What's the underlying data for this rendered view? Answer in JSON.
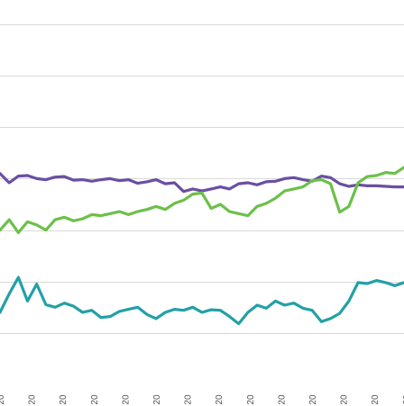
{
  "chart_data": {
    "type": "line",
    "grid": true,
    "legend": "none",
    "xlabel": "",
    "ylabel": "",
    "ylim": [
      0,
      7
    ],
    "gridlines": [
      1,
      2,
      3,
      4,
      5,
      6,
      7
    ],
    "x_tick_labels": [
      "20",
      "20",
      "20",
      "20",
      "20",
      "20",
      "20",
      "20",
      "20",
      "20",
      "20",
      "20",
      "20",
      "20"
    ],
    "series": [
      {
        "color": "#6a4fa3",
        "values": [
          4.1,
          3.92,
          4.05,
          4.06,
          4.0,
          3.98,
          4.03,
          4.04,
          3.97,
          3.98,
          3.95,
          3.98,
          4.0,
          3.96,
          3.98,
          3.91,
          3.94,
          3.98,
          3.9,
          3.92,
          3.75,
          3.8,
          3.76,
          3.8,
          3.84,
          3.8,
          3.9,
          3.92,
          3.88,
          3.94,
          3.95,
          4.0,
          4.02,
          3.98,
          3.95,
          4.05,
          4.02,
          3.9,
          3.85,
          3.88,
          3.86,
          3.86,
          3.85,
          3.84,
          3.84
        ]
      },
      {
        "color": "#6cc04a",
        "values": [
          3.0,
          3.2,
          2.95,
          3.16,
          3.1,
          3.0,
          3.2,
          3.25,
          3.18,
          3.22,
          3.3,
          3.28,
          3.32,
          3.36,
          3.3,
          3.36,
          3.4,
          3.46,
          3.4,
          3.52,
          3.58,
          3.7,
          3.72,
          3.42,
          3.5,
          3.36,
          3.32,
          3.28,
          3.46,
          3.52,
          3.62,
          3.76,
          3.8,
          3.84,
          3.96,
          3.98,
          3.9,
          3.35,
          3.46,
          3.92,
          4.04,
          4.06,
          4.12,
          4.1,
          4.22
        ]
      },
      {
        "color": "#23a0a7",
        "values": [
          1.4,
          1.76,
          2.08,
          1.62,
          1.95,
          1.55,
          1.5,
          1.58,
          1.52,
          1.4,
          1.44,
          1.3,
          1.32,
          1.42,
          1.46,
          1.5,
          1.36,
          1.28,
          1.4,
          1.46,
          1.44,
          1.5,
          1.4,
          1.45,
          1.44,
          1.32,
          1.18,
          1.4,
          1.54,
          1.48,
          1.62,
          1.54,
          1.58,
          1.48,
          1.44,
          1.22,
          1.28,
          1.38,
          1.62,
          1.98,
          1.96,
          2.02,
          1.98,
          1.92,
          1.98
        ]
      }
    ]
  }
}
